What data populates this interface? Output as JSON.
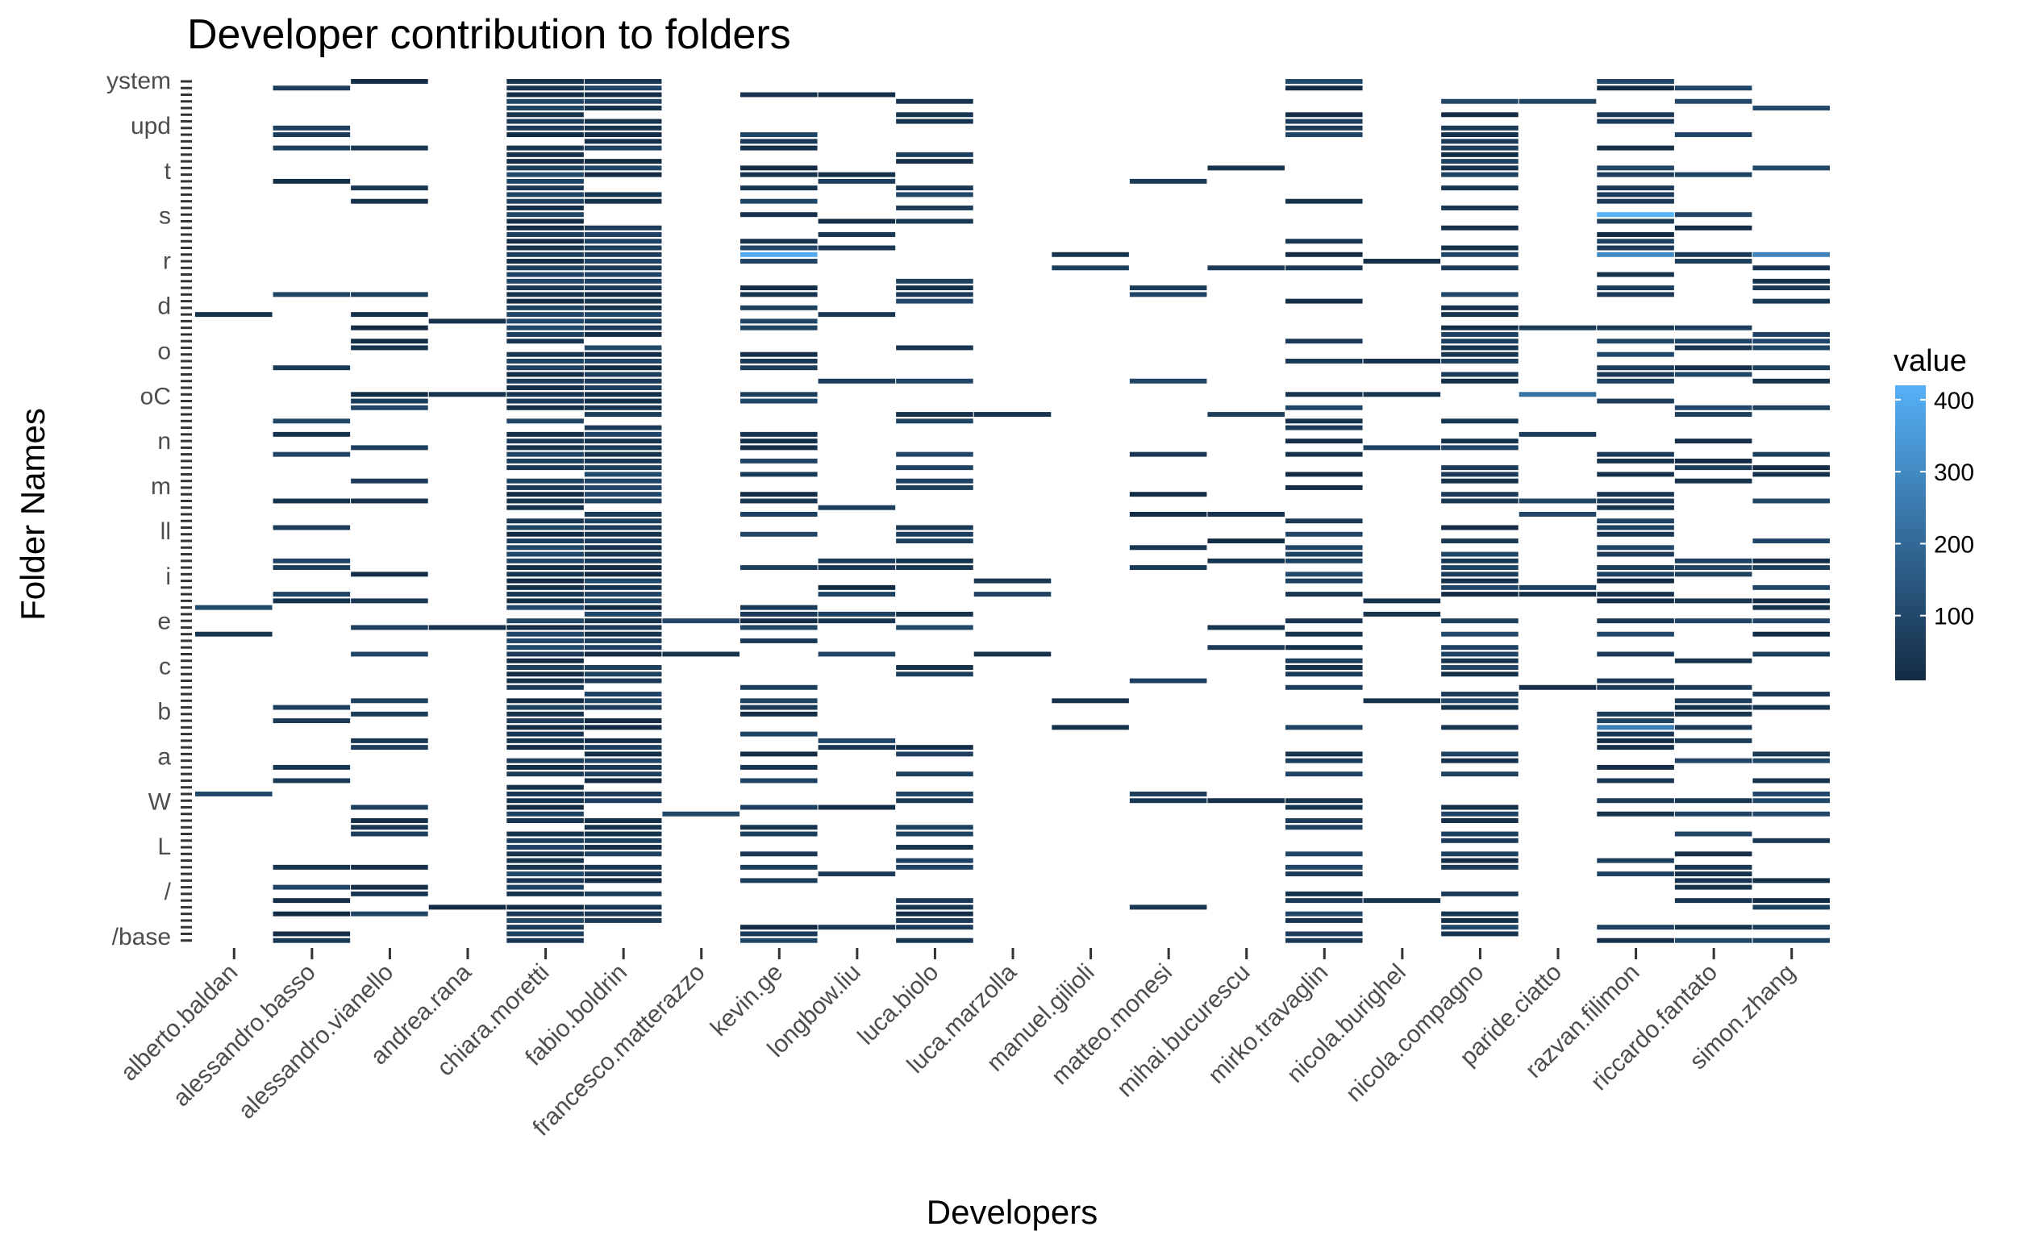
{
  "chart_data": {
    "type": "heatmap",
    "title": "Developer contribution to folders",
    "xlabel": "Developers",
    "ylabel": "Folder Names",
    "categories": [
      "alberto.baldan",
      "alessandro.basso",
      "alessandro.vianello",
      "andrea.rana",
      "chiara.moretti",
      "fabio.boldrin",
      "francesco.matterazzo",
      "kevin.ge",
      "longbow.liu",
      "luca.biolo",
      "luca.marzolla",
      "manuel.gilioli",
      "matteo.monesi",
      "mihai.bucurescu",
      "mirko.travaglin",
      "nicola.burighel",
      "nicola.compagno",
      "paride.ciatto",
      "razvan.filimon",
      "riccardo.fantato",
      "simon.zhang"
    ],
    "y_labels_visible": [
      "ystem",
      "upd",
      "t",
      "s",
      "r",
      "d",
      "o",
      "oC",
      "n",
      "m",
      "ll",
      "i",
      "e",
      "c",
      "b",
      "a",
      "W",
      "L",
      "/",
      "/base"
    ],
    "y_tick_count": 130,
    "legend": {
      "title": "value",
      "ticks": [
        100,
        200,
        300,
        400
      ],
      "range": [
        10,
        420
      ],
      "low_color": "#132B43",
      "high_color": "#56B1F7",
      "placement": "right"
    },
    "cells": [
      {
        "dev": "alberto.baldan",
        "row": 83,
        "value": 40
      },
      {
        "dev": "alberto.baldan",
        "row": 35,
        "value": 30
      },
      {
        "dev": "andrea.rana",
        "row": 36,
        "value": 30
      },
      {
        "dev": "andrea.rana",
        "row": 47,
        "value": 30
      },
      {
        "dev": "andrea.rana",
        "row": 82,
        "value": 30
      },
      {
        "dev": "francesco.matterazzo",
        "row": 86,
        "value": 30
      },
      {
        "dev": "luca.marzolla",
        "row": 86,
        "value": 30
      },
      {
        "dev": "manuel.gilioli",
        "row": 26,
        "value": 40
      },
      {
        "dev": "manuel.gilioli",
        "row": 93,
        "value": 30
      },
      {
        "dev": "manuel.gilioli",
        "row": 97,
        "value": 30
      },
      {
        "dev": "mihai.bucurescu",
        "row": 28,
        "value": 60
      },
      {
        "dev": "mihai.bucurescu",
        "row": 50,
        "value": 70
      },
      {
        "dev": "mihai.bucurescu",
        "row": 72,
        "value": 40
      },
      {
        "dev": "mihai.bucurescu",
        "row": 82,
        "value": 40
      },
      {
        "dev": "nicola.burighel",
        "row": 42,
        "value": 30
      },
      {
        "dev": "nicola.burighel",
        "row": 47,
        "value": 40
      },
      {
        "dev": "nicola.burighel",
        "row": 78,
        "value": 30
      },
      {
        "dev": "nicola.burighel",
        "row": 80,
        "value": 40
      },
      {
        "dev": "nicola.burighel",
        "row": 93,
        "value": 30
      },
      {
        "dev": "kevin.ge",
        "row": 26,
        "value": 400
      },
      {
        "dev": "razvan.filimon",
        "row": 20,
        "value": 420
      },
      {
        "dev": "razvan.filimon",
        "row": 26,
        "value": 300
      },
      {
        "dev": "simon.zhang",
        "row": 26,
        "value": 280
      },
      {
        "dev": "paride.ciatto",
        "row": 47,
        "value": 220
      },
      {
        "dev": "razvan.filimon",
        "row": 97,
        "value": 260
      }
    ]
  }
}
